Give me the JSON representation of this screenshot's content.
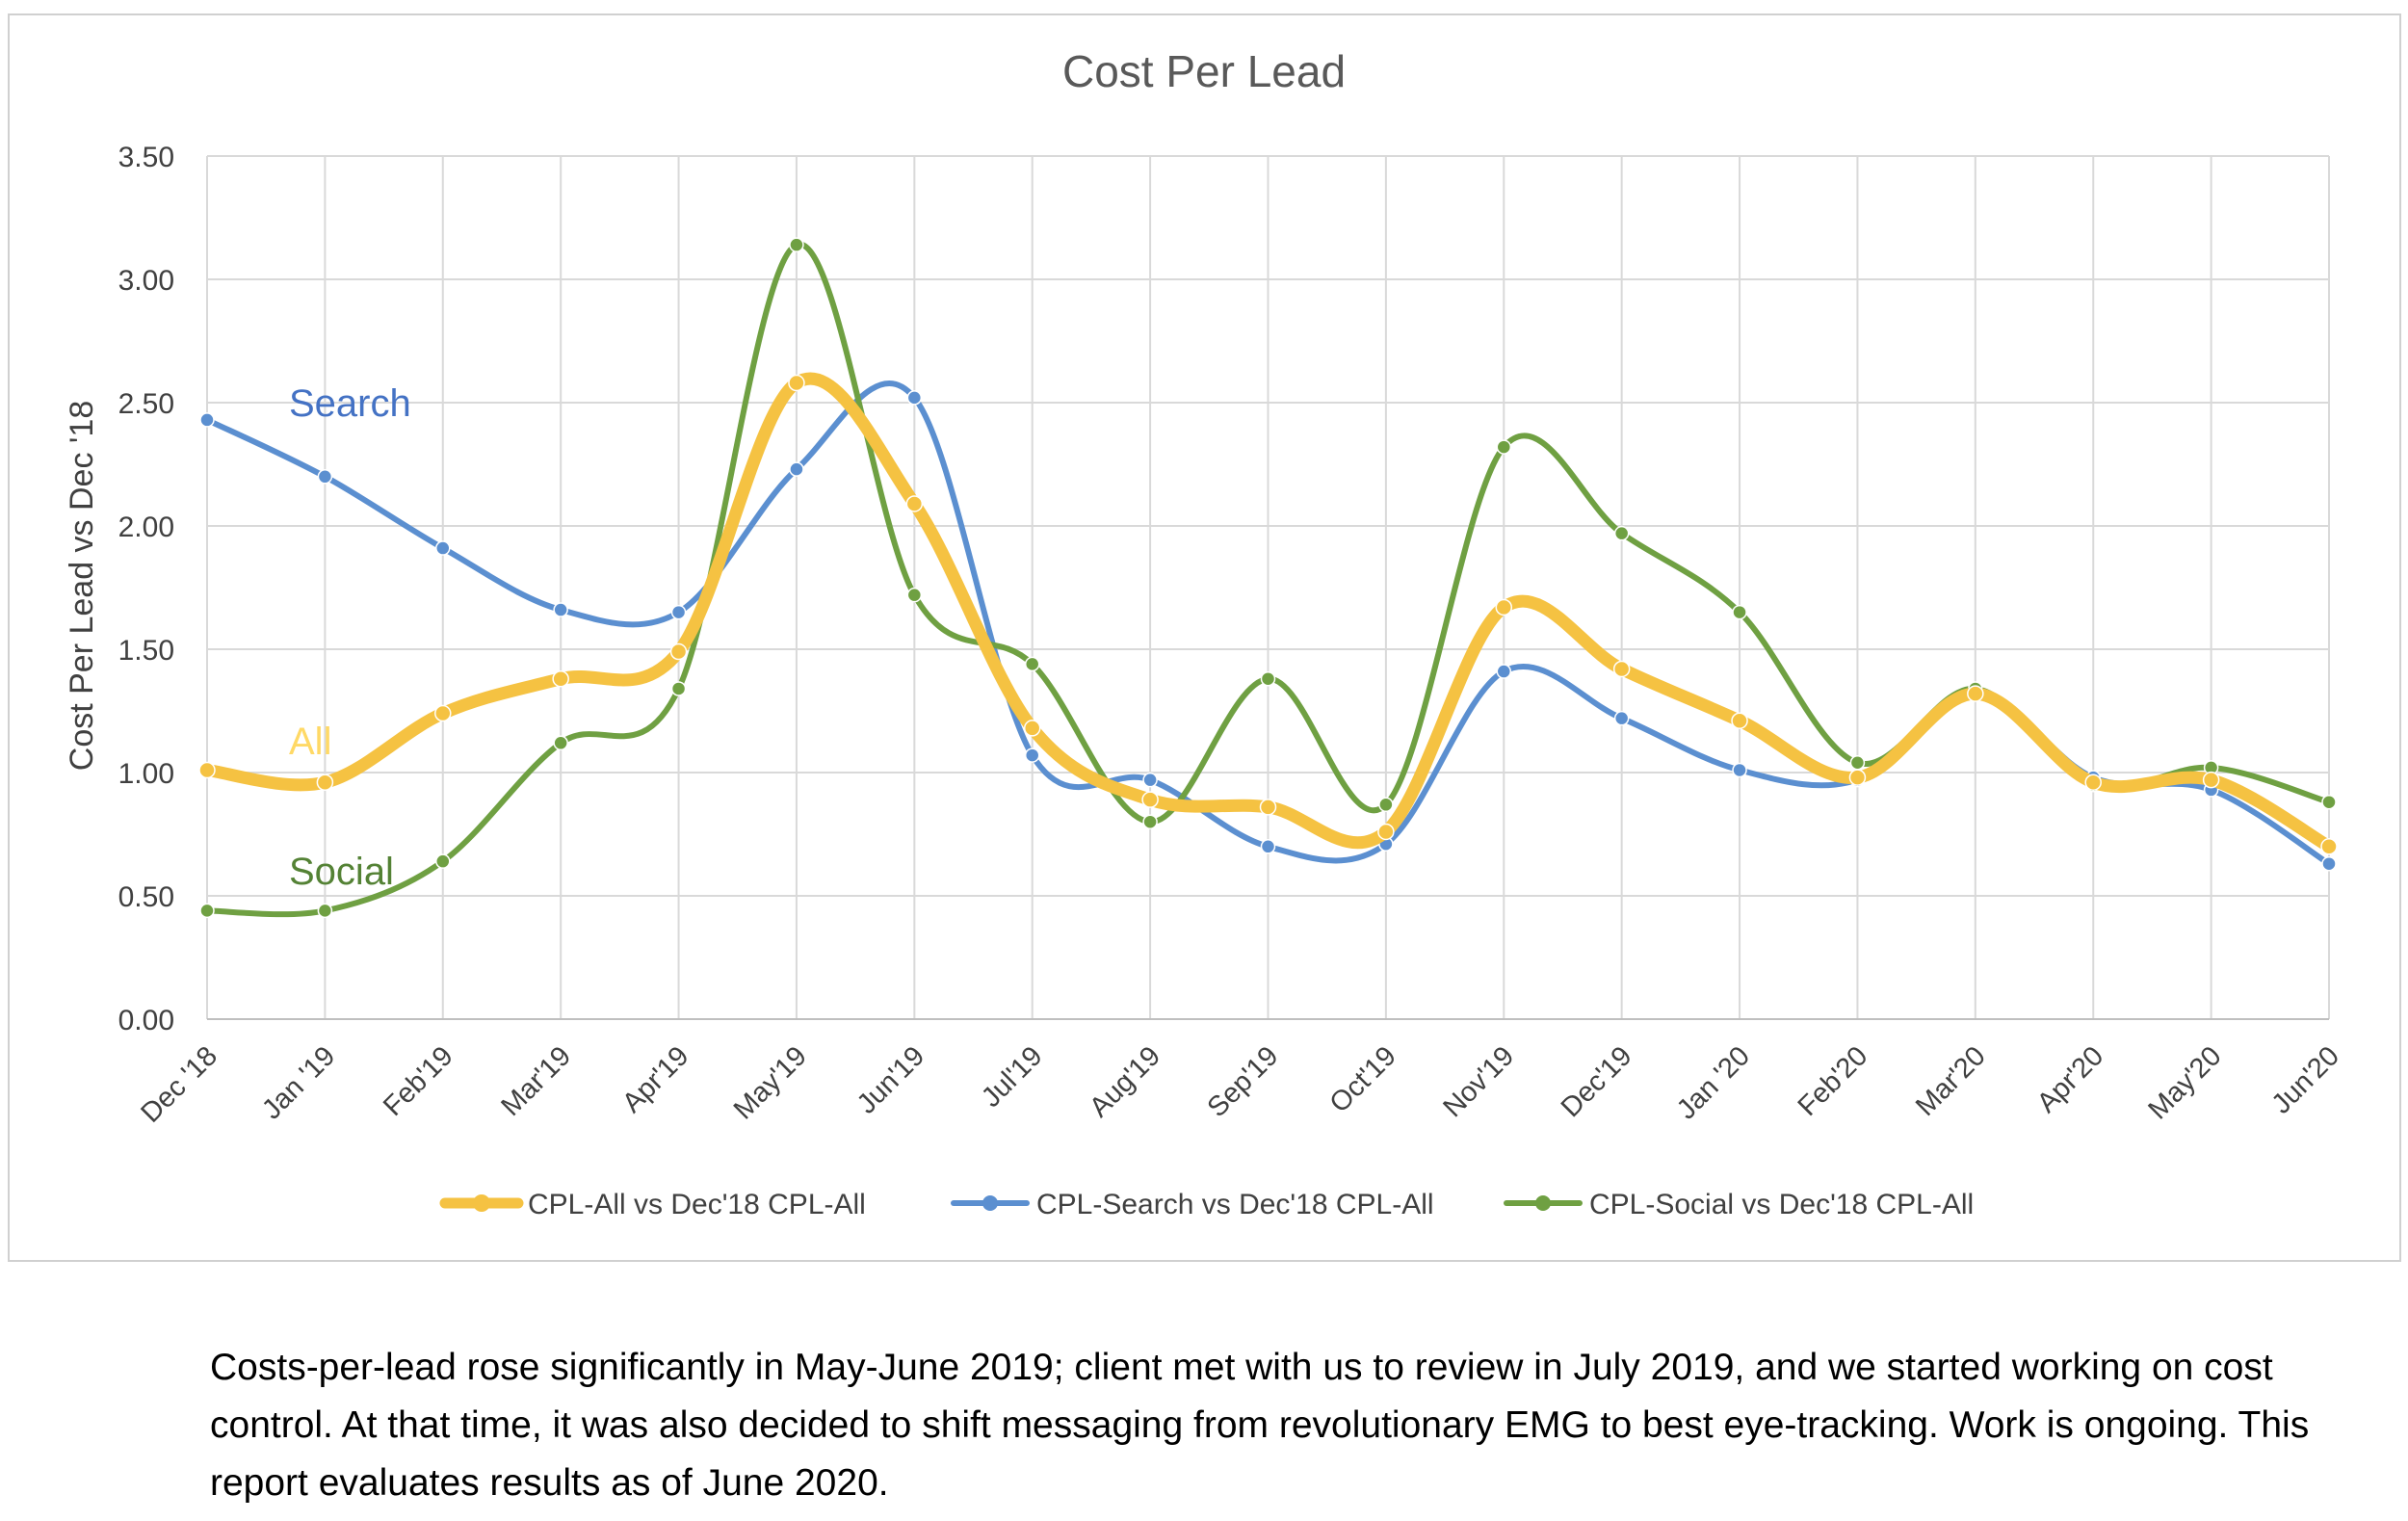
{
  "chart_data": {
    "type": "line",
    "title": "Cost Per Lead",
    "ylabel": "Cost Per Lead vs Dec '18",
    "xlabel": "",
    "ylim": [
      0,
      3.5
    ],
    "yticks": [
      "0.00",
      "0.50",
      "1.00",
      "1.50",
      "2.00",
      "2.50",
      "3.00",
      "3.50"
    ],
    "grid": true,
    "legend_position": "bottom",
    "categories": [
      "Dec '18",
      "Jan '19",
      "Feb'19",
      "Mar'19",
      "Apr'19",
      "May'19",
      "Jun'19",
      "Jul'19",
      "Aug'19",
      "Sep'19",
      "Oct'19",
      "Nov'19",
      "Dec'19",
      "Jan '20",
      "Feb'20",
      "Mar'20",
      "Apr'20",
      "May'20",
      "Jun'20"
    ],
    "series": [
      {
        "name": "CPL-All vs Dec'18 CPL-All",
        "color": "#F5C242",
        "values": [
          1.01,
          0.96,
          1.24,
          1.38,
          1.49,
          2.58,
          2.09,
          1.18,
          0.89,
          0.86,
          0.76,
          1.67,
          1.42,
          1.21,
          0.98,
          1.32,
          0.96,
          0.97,
          0.7
        ]
      },
      {
        "name": "CPL-Search vs Dec'18 CPL-All",
        "color": "#5B8FD0",
        "values": [
          2.43,
          2.2,
          1.91,
          1.66,
          1.65,
          2.23,
          2.52,
          1.07,
          0.97,
          0.7,
          0.71,
          1.41,
          1.22,
          1.01,
          0.97,
          1.32,
          0.98,
          0.93,
          0.63
        ]
      },
      {
        "name": "CPL-Social vs Dec'18 CPL-All",
        "color": "#6FA042",
        "values": [
          0.44,
          0.44,
          0.64,
          1.12,
          1.34,
          3.14,
          1.72,
          1.44,
          0.8,
          1.38,
          0.87,
          2.32,
          1.97,
          1.65,
          1.04,
          1.34,
          0.95,
          1.02,
          0.88
        ]
      }
    ],
    "annotations": [
      {
        "text": "Search",
        "color": "#4472C4"
      },
      {
        "text": "All",
        "color": "#FFD966"
      },
      {
        "text": "Social",
        "color": "#548235"
      }
    ]
  },
  "caption": "Costs-per-lead rose significantly in May-June 2019; client met with us to review in July 2019, and we started working on cost control. At that time, it was also decided to shift messaging from revolutionary EMG to best eye-tracking. Work is ongoing. This report evaluates results as of June 2020."
}
